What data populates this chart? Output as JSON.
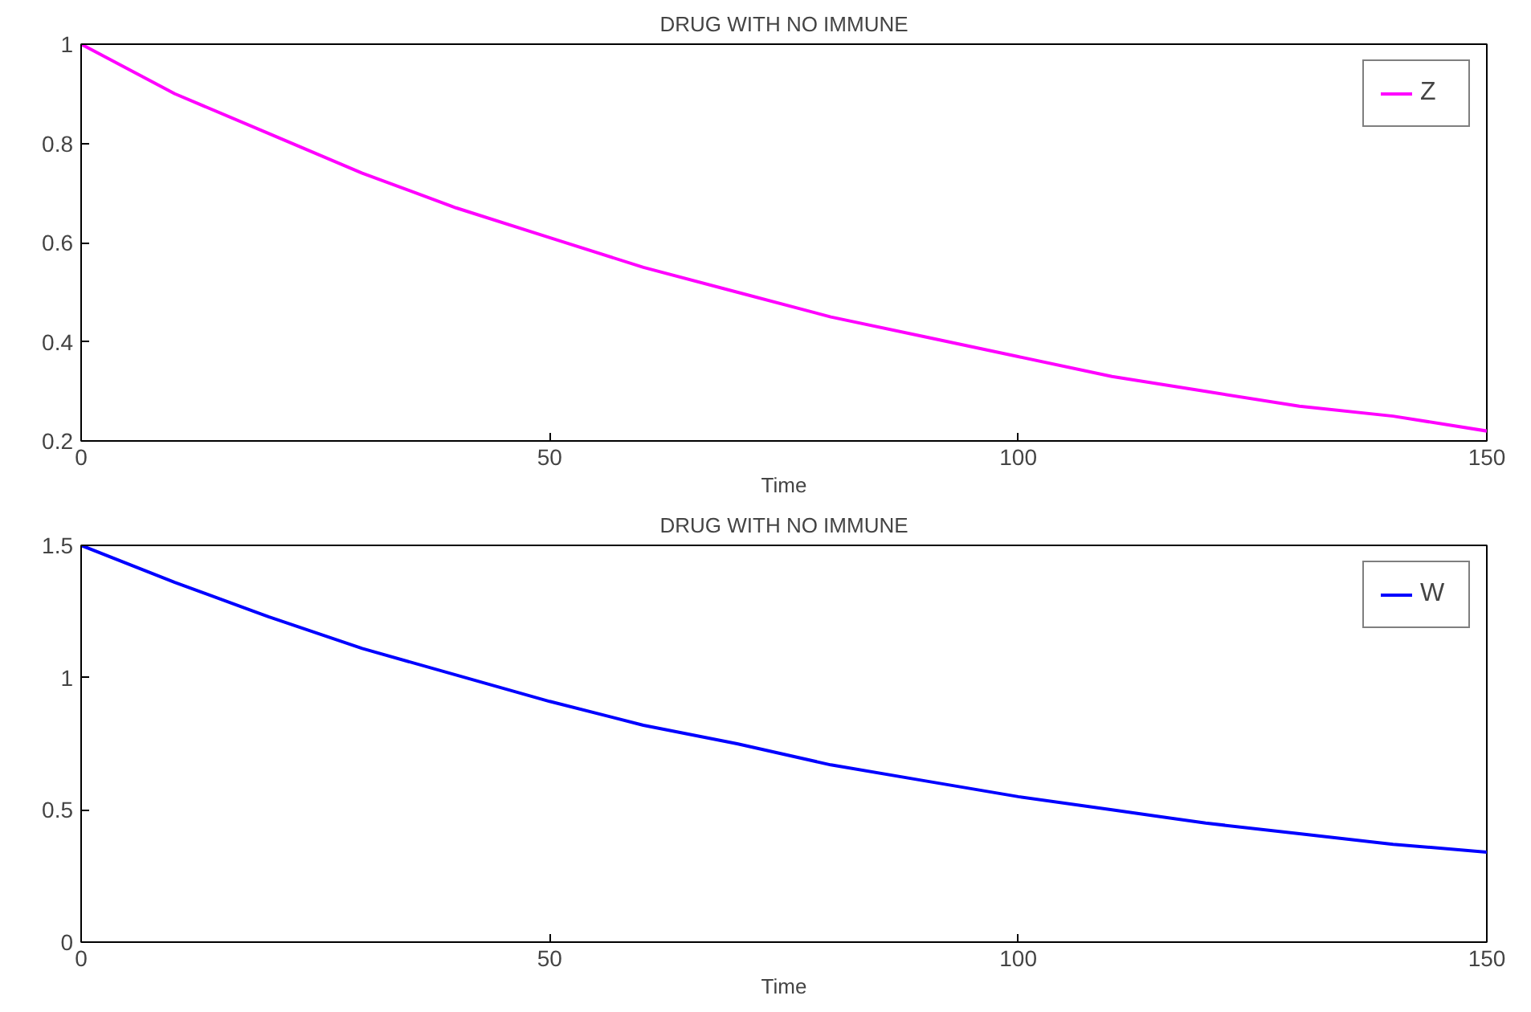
{
  "chart_data": [
    {
      "type": "line",
      "title": "DRUG WITH NO IMMUNE",
      "xlabel": "Time",
      "x": [
        0,
        10,
        20,
        30,
        40,
        50,
        60,
        70,
        80,
        90,
        100,
        110,
        120,
        130,
        140,
        150
      ],
      "series": [
        {
          "name": "Z",
          "color": "#ff00ff",
          "values": [
            1,
            0.9,
            0.82,
            0.74,
            0.67,
            0.61,
            0.55,
            0.5,
            0.45,
            0.41,
            0.37,
            0.33,
            0.3,
            0.27,
            0.25,
            0.22
          ]
        }
      ],
      "xlim": [
        0,
        150
      ],
      "xticks": [
        0,
        50,
        100,
        150
      ],
      "ylim": [
        0.2,
        1
      ],
      "yticks": [
        0.2,
        0.4,
        0.6,
        0.8,
        1
      ],
      "legend": "top right",
      "grid": false,
      "line_style": "solid"
    },
    {
      "type": "line",
      "title": "DRUG WITH NO IMMUNE",
      "xlabel": "Time",
      "x": [
        0,
        10,
        20,
        30,
        40,
        50,
        60,
        70,
        80,
        90,
        100,
        110,
        120,
        130,
        140,
        150
      ],
      "series": [
        {
          "name": "W",
          "color": "#0000ff",
          "values": [
            1.5,
            1.36,
            1.23,
            1.11,
            1.01,
            0.91,
            0.82,
            0.75,
            0.67,
            0.61,
            0.55,
            0.5,
            0.45,
            0.41,
            0.37,
            0.34
          ]
        }
      ],
      "xlim": [
        0,
        150
      ],
      "xticks": [
        0,
        50,
        100,
        150
      ],
      "ylim": [
        0,
        1.5
      ],
      "yticks": [
        0,
        0.5,
        1,
        1.5
      ],
      "legend": "top right",
      "grid": false,
      "line_style": "solid"
    }
  ]
}
